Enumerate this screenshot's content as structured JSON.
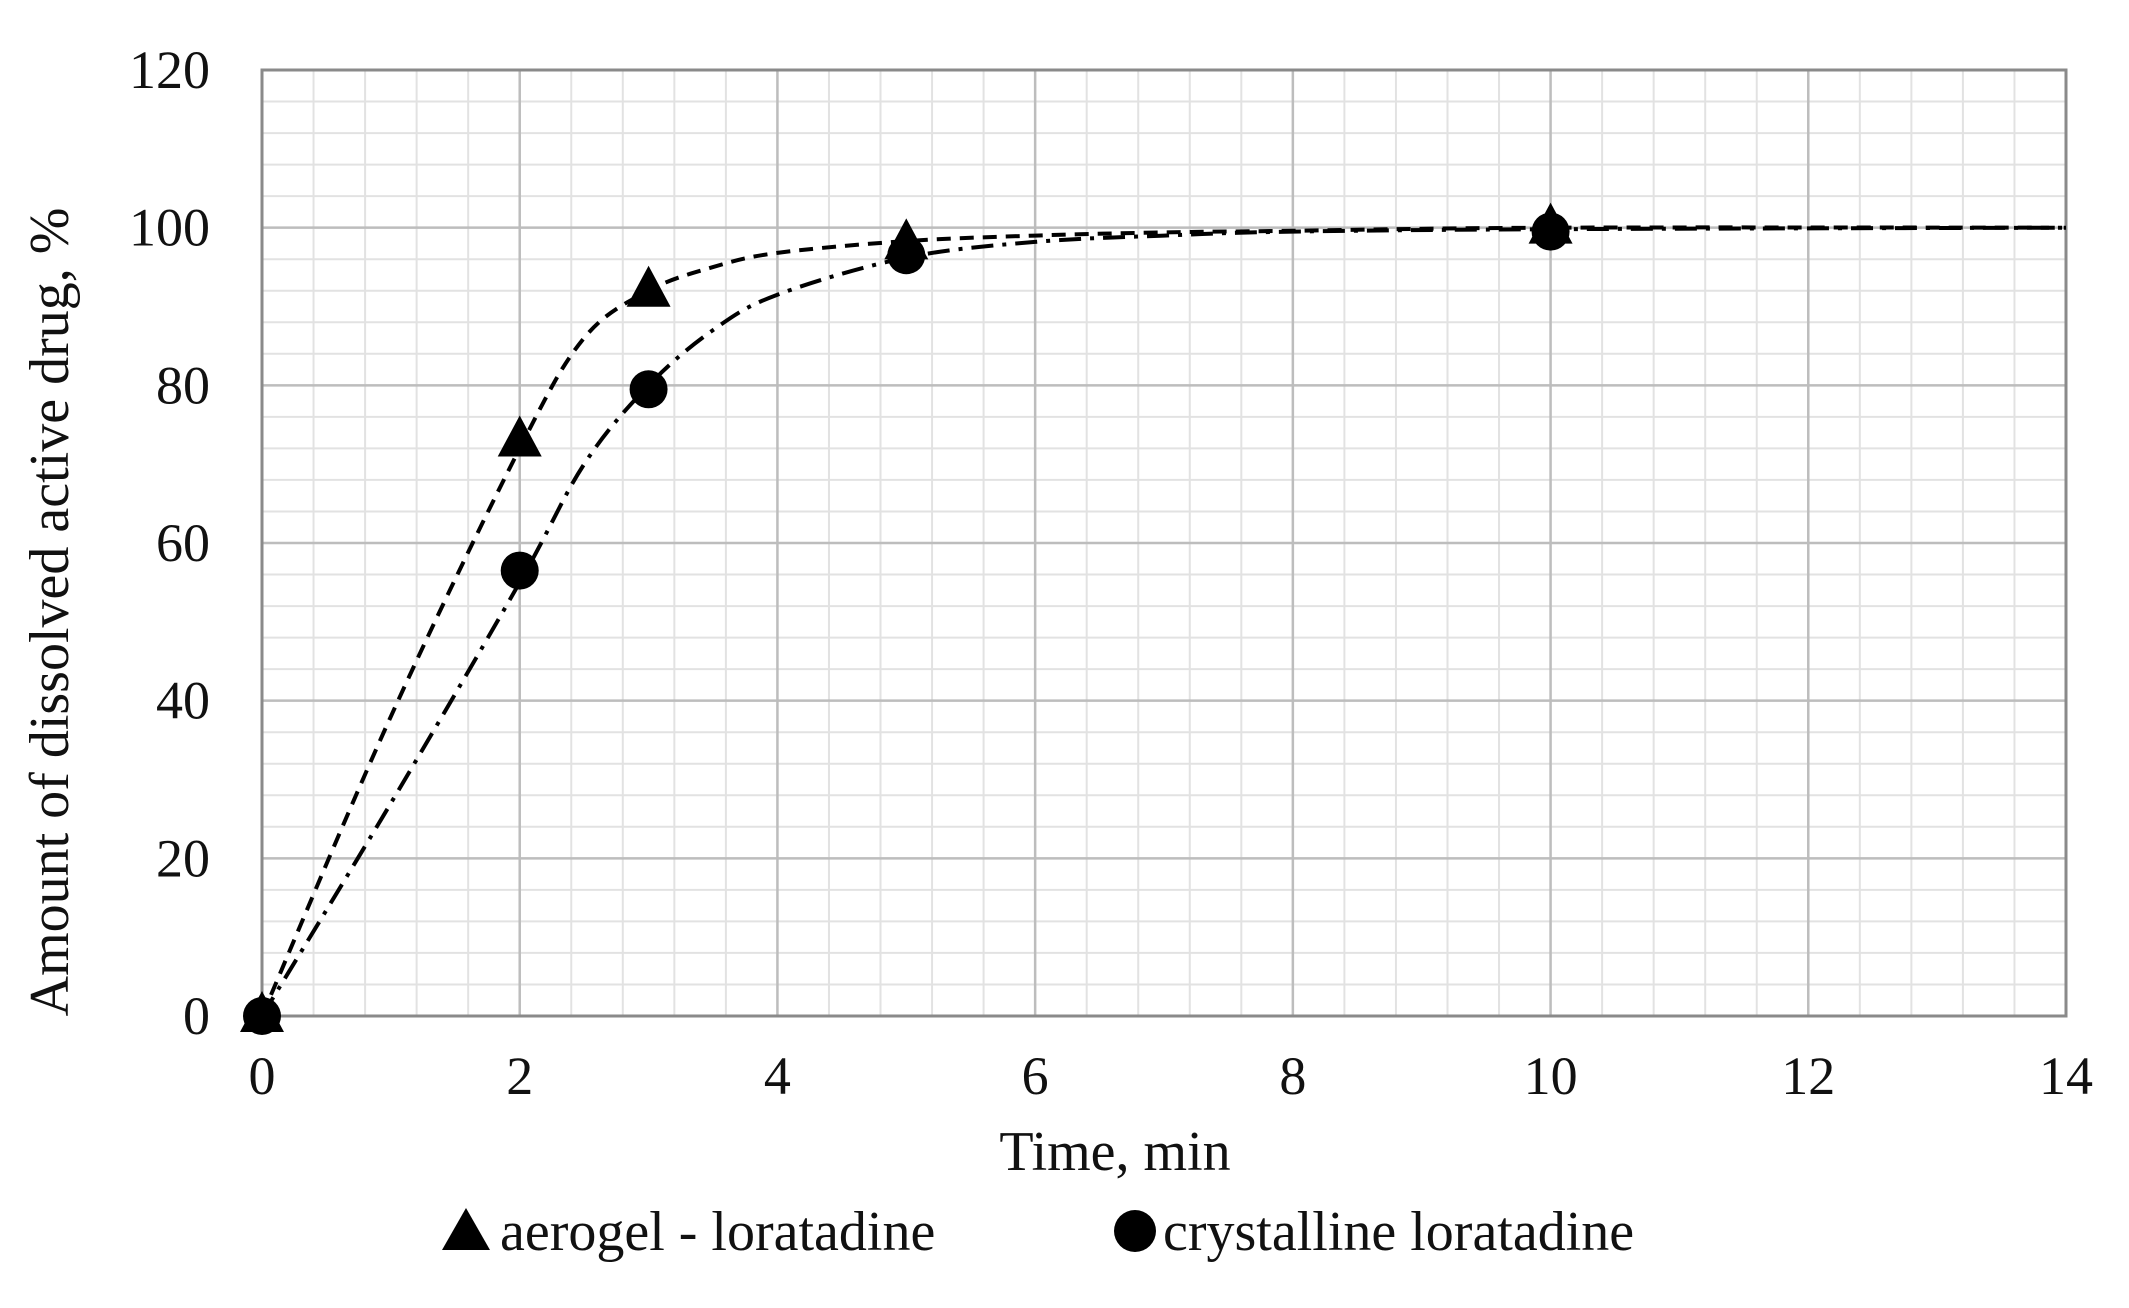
{
  "chart_data": {
    "type": "scatter",
    "title": "",
    "xlabel": "Time, min",
    "ylabel": "Amount of dissolved active drug, %",
    "xlim": [
      0,
      14
    ],
    "ylim": [
      0,
      120
    ],
    "xticks": [
      0,
      2,
      4,
      6,
      8,
      10,
      12,
      14
    ],
    "yticks": [
      0,
      20,
      40,
      60,
      80,
      100,
      120
    ],
    "xtick_labels": [
      "0",
      "2",
      "4",
      "6",
      "8",
      "10",
      "12",
      "14"
    ],
    "ytick_labels": [
      "0",
      "20",
      "40",
      "60",
      "80",
      "100",
      "120"
    ],
    "minor_grid_x_step": 0.4,
    "minor_grid_y_step": 4,
    "grid": true,
    "legend_position": "bottom",
    "series": [
      {
        "name": "aerogel - loratadine",
        "marker": "triangle",
        "line_style": "dashed",
        "color": "#000000",
        "x": [
          0,
          2,
          3,
          5,
          10
        ],
        "y": [
          0,
          73,
          92,
          98,
          100
        ],
        "fit": {
          "x": [
            0,
            1,
            2,
            2.5,
            3,
            3.5,
            4,
            5,
            6,
            7,
            8,
            10,
            14
          ],
          "y": [
            0,
            38,
            72,
            86,
            92,
            95,
            96.8,
            98.3,
            99.0,
            99.4,
            99.6,
            100,
            100
          ]
        }
      },
      {
        "name": "crystalline loratadine",
        "marker": "circle",
        "line_style": "dash-dot",
        "color": "#000000",
        "x": [
          0,
          2,
          3,
          5,
          10
        ],
        "y": [
          0,
          56.5,
          79.5,
          96.5,
          99.5
        ],
        "fit": {
          "x": [
            0,
            1,
            2,
            2.5,
            3,
            3.5,
            4,
            5,
            6,
            7,
            8,
            10,
            14
          ],
          "y": [
            0,
            27,
            55,
            70,
            80,
            87,
            91.5,
            96.2,
            98.2,
            99.0,
            99.5,
            99.8,
            100
          ]
        }
      }
    ]
  }
}
